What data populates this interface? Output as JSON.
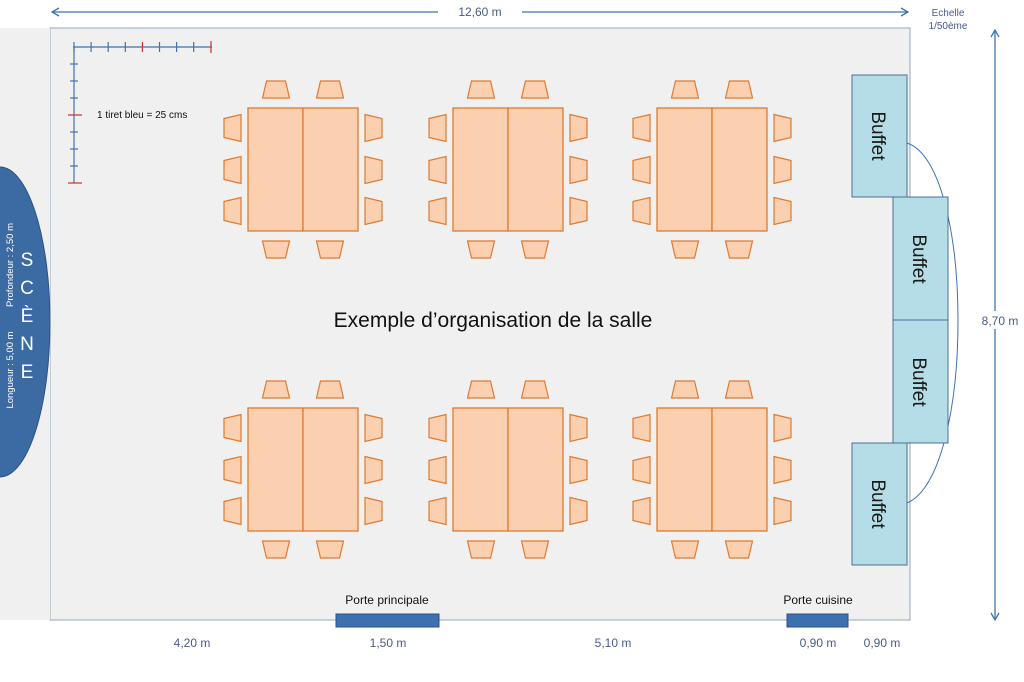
{
  "dimensions": {
    "width": "12,60 m",
    "height": "8,70 m",
    "bottom_segment_1": "4,20 m",
    "bottom_segment_2": "1,50 m",
    "bottom_segment_3": "5,10 m",
    "bottom_segment_4": "0,90 m",
    "bottom_segment_5": "0,90 m"
  },
  "scale": {
    "line1": "Echelle",
    "line2": "1/50ème"
  },
  "ruler_note": "1 tiret bleu = 25 cms",
  "room_title": "Exemple d’organisation de la salle",
  "stage": {
    "letters": [
      "S",
      "C",
      "È",
      "N",
      "E"
    ],
    "depth": "Profondeur : 2,50 m",
    "length": "Longueur : 5,00 m"
  },
  "buffets": [
    "Buffet",
    "Buffet",
    "Buffet",
    "Buffet"
  ],
  "doors": {
    "main": "Porte principale",
    "kitchen": "Porte cuisine"
  },
  "table_groups": 6,
  "chairs_per_group": 10,
  "colors": {
    "room_fill": "#f0f0f0",
    "line_blue": "#3e74b0",
    "stage_fill": "#3c6aa3",
    "table_fill": "#fbd0b1",
    "table_stroke": "#e07a2f",
    "buffet_fill": "#b5dde7",
    "buffet_stroke": "#4c6f95",
    "door_fill": "#3e6fae",
    "ruler_red": "#d42a2a"
  }
}
